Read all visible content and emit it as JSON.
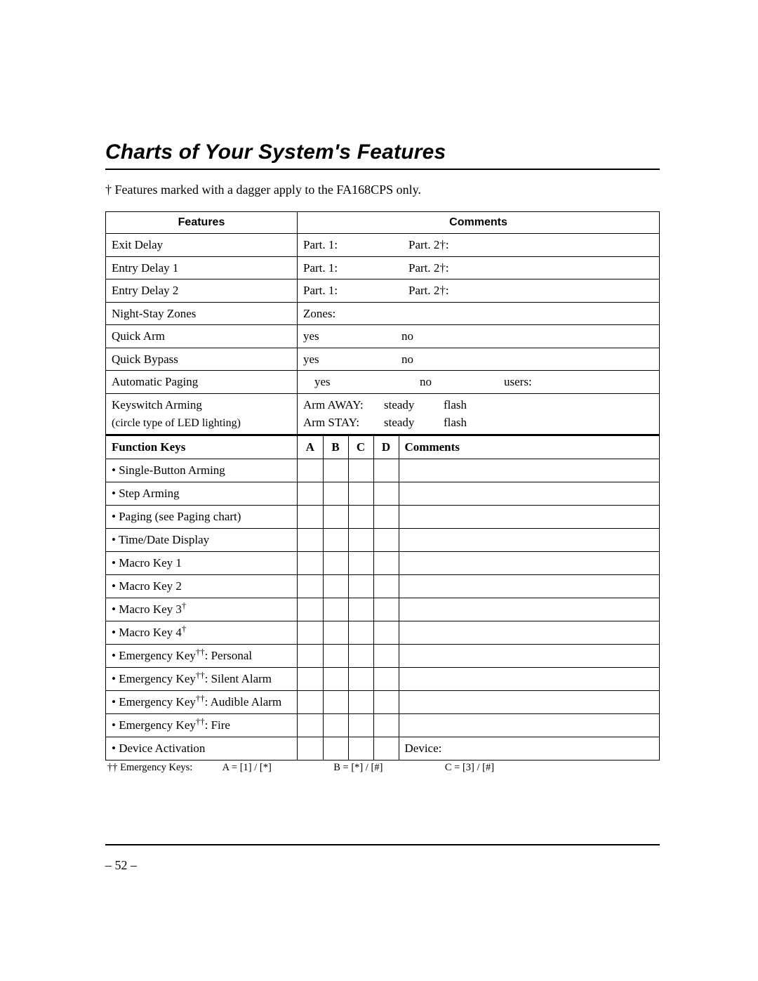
{
  "title": "Charts of Your System's Features",
  "dagger_note": "† Features marked with a dagger apply to the FA168CPS only.",
  "table1": {
    "head_features": "Features",
    "head_comments": "Comments",
    "rows": {
      "exit_delay": {
        "label": "Exit Delay",
        "p1": "Part. 1:",
        "p2": "Part. 2†:"
      },
      "entry_delay1": {
        "label": "Entry Delay 1",
        "p1": "Part. 1:",
        "p2": "Part. 2†:"
      },
      "entry_delay2": {
        "label": "Entry Delay 2",
        "p1": "Part. 1:",
        "p2": "Part. 2†:"
      },
      "night_stay": {
        "label": "Night-Stay Zones",
        "c": "Zones:"
      },
      "quick_arm": {
        "label": "Quick Arm",
        "yes": "yes",
        "no": "no"
      },
      "quick_bypass": {
        "label": "Quick Bypass",
        "yes": "yes",
        "no": "no"
      },
      "auto_paging": {
        "label": "Automatic Paging",
        "yes": "yes",
        "no": "no",
        "users": "users:"
      },
      "keyswitch": {
        "label": "Keyswitch Arming",
        "sub": "(circle type of LED lighting)",
        "l1": "Arm AWAY:",
        "l2": "Arm STAY:",
        "steady": "steady",
        "flash": "flash"
      }
    }
  },
  "table2": {
    "head_fk": "Function Keys",
    "kA": "A",
    "kB": "B",
    "kC": "C",
    "kD": "D",
    "head_comments": "Comments",
    "rows": [
      {
        "label": "Single-Button Arming"
      },
      {
        "label": "Step Arming"
      },
      {
        "label": "Paging (see Paging chart)"
      },
      {
        "label": "Time/Date Display"
      },
      {
        "label": "Macro Key 1"
      },
      {
        "label": "Macro Key 2"
      },
      {
        "label": "Macro Key 3",
        "sup": "†"
      },
      {
        "label": "Macro Key 4",
        "sup": "†"
      },
      {
        "label": "Emergency Key",
        "sup": "††",
        "tail": ": Personal"
      },
      {
        "label": "Emergency Key",
        "sup": "††",
        "tail": ": Silent Alarm"
      },
      {
        "label": "Emergency Key",
        "sup": "††",
        "tail": ": Audible Alarm"
      },
      {
        "label": "Emergency Key",
        "sup": "††",
        "tail": ": Fire"
      },
      {
        "label": "Device Activation",
        "comment": "Device:"
      }
    ]
  },
  "footnote": {
    "lead": "†† Emergency Keys:",
    "a": "A = [1] / [*]",
    "b": "B = [*] / [#]",
    "c": "C = [3] / [#]"
  },
  "page_number": "– 52 –"
}
